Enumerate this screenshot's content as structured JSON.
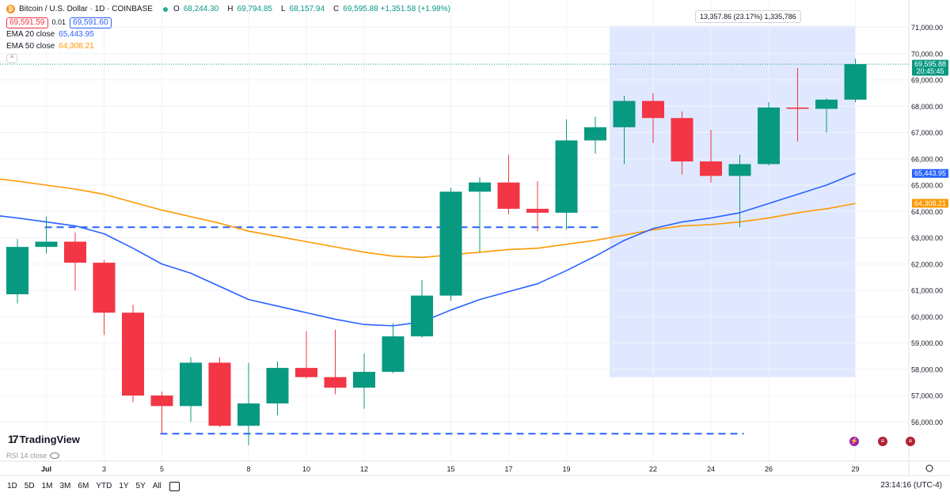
{
  "header": {
    "title": "Bitcoin / U.S. Dollar · 1D · COINBASE",
    "ohlc": [
      {
        "k": "O",
        "v": "68,244.30"
      },
      {
        "k": "H",
        "v": "69,794.85"
      },
      {
        "k": "L",
        "v": "68,157.94"
      },
      {
        "k": "C",
        "v": "69,595.88 +1,351.58 (+1.98%)"
      }
    ],
    "sell_price": "69,591.59",
    "spread": "0.01",
    "buy_price": "69,591.60",
    "ema20_label": "EMA 20 close",
    "ema20_value": "65,443.95",
    "ema50_label": "EMA 50 close",
    "ema50_value": "64,308.21",
    "collapse_symbol": "^"
  },
  "measure_label": "13,357.86 (23.17%) 1,335,786",
  "logo": "TradingView",
  "rsi_label": "RSI 14 close",
  "timeframes": [
    "1D",
    "5D",
    "1M",
    "3M",
    "6M",
    "YTD",
    "1Y",
    "5Y",
    "All"
  ],
  "clock": "23:14:16 (UTC-4)",
  "colors": {
    "up": "#089981",
    "down": "#f23645",
    "ema20": "#2962ff",
    "ema50": "#ff9800",
    "measure": "#dbe4ff"
  },
  "chart_data": {
    "type": "candlestick",
    "y_ticks": [
      56000,
      57000,
      58000,
      59000,
      60000,
      61000,
      62000,
      63000,
      64000,
      65000,
      66000,
      67000,
      68000,
      69000,
      70000,
      71000
    ],
    "y_tick_labels": [
      "56,000.00",
      "57,000.00",
      "58,000.00",
      "59,000.00",
      "60,000.00",
      "61,000.00",
      "62,000.00",
      "63,000.00",
      "64,000.00",
      "65,000.00",
      "66,000.00",
      "67,000.00",
      "68,000.00",
      "69,000.00",
      "70,000.00",
      "71,000.00"
    ],
    "x_ticks": [
      {
        "index": 1,
        "label": "Jul"
      },
      {
        "index": 3,
        "label": "3"
      },
      {
        "index": 5,
        "label": "5"
      },
      {
        "index": 8,
        "label": "8"
      },
      {
        "index": 10,
        "label": "10"
      },
      {
        "index": 12,
        "label": "12"
      },
      {
        "index": 15,
        "label": "15"
      },
      {
        "index": 17,
        "label": "17"
      },
      {
        "index": 19,
        "label": "19"
      },
      {
        "index": 22,
        "label": "22"
      },
      {
        "index": 24,
        "label": "24"
      },
      {
        "index": 26,
        "label": "26"
      },
      {
        "index": 29,
        "label": "29"
      }
    ],
    "candles": [
      {
        "o": 60850,
        "h": 62950,
        "l": 60500,
        "c": 62650
      },
      {
        "o": 62650,
        "h": 63800,
        "l": 62400,
        "c": 62850
      },
      {
        "o": 62850,
        "h": 63200,
        "l": 61000,
        "c": 62050
      },
      {
        "o": 62050,
        "h": 62150,
        "l": 59300,
        "c": 60150
      },
      {
        "o": 60150,
        "h": 60450,
        "l": 56750,
        "c": 57000
      },
      {
        "o": 57000,
        "h": 57150,
        "l": 55550,
        "c": 56600
      },
      {
        "o": 56600,
        "h": 58450,
        "l": 56000,
        "c": 58250
      },
      {
        "o": 58250,
        "h": 58450,
        "l": 55800,
        "c": 55850
      },
      {
        "o": 55850,
        "h": 58250,
        "l": 55100,
        "c": 56700
      },
      {
        "o": 56700,
        "h": 58300,
        "l": 56250,
        "c": 58050
      },
      {
        "o": 58050,
        "h": 59450,
        "l": 57650,
        "c": 57700
      },
      {
        "o": 57700,
        "h": 59500,
        "l": 57050,
        "c": 57300
      },
      {
        "o": 57300,
        "h": 58600,
        "l": 56500,
        "c": 57900
      },
      {
        "o": 57900,
        "h": 59750,
        "l": 57850,
        "c": 59250
      },
      {
        "o": 59250,
        "h": 61400,
        "l": 59200,
        "c": 60800
      },
      {
        "o": 60800,
        "h": 64900,
        "l": 60600,
        "c": 64750
      },
      {
        "o": 64750,
        "h": 65300,
        "l": 62450,
        "c": 65100
      },
      {
        "o": 65100,
        "h": 66150,
        "l": 63900,
        "c": 64100
      },
      {
        "o": 64100,
        "h": 65150,
        "l": 63250,
        "c": 63950
      },
      {
        "o": 63950,
        "h": 67500,
        "l": 63300,
        "c": 66700
      },
      {
        "o": 66700,
        "h": 67600,
        "l": 66200,
        "c": 67200
      },
      {
        "o": 67200,
        "h": 68400,
        "l": 65800,
        "c": 68200
      },
      {
        "o": 68200,
        "h": 68500,
        "l": 66600,
        "c": 67550
      },
      {
        "o": 67550,
        "h": 67800,
        "l": 65400,
        "c": 65900
      },
      {
        "o": 65900,
        "h": 67100,
        "l": 65100,
        "c": 65350
      },
      {
        "o": 65350,
        "h": 66150,
        "l": 63400,
        "c": 65800
      },
      {
        "o": 65800,
        "h": 68150,
        "l": 65750,
        "c": 67950
      },
      {
        "o": 67950,
        "h": 69450,
        "l": 66650,
        "c": 67900
      },
      {
        "o": 67900,
        "h": 68300,
        "l": 67000,
        "c": 68250
      },
      {
        "o": 68250,
        "h": 69800,
        "l": 68150,
        "c": 69600
      }
    ],
    "ema20": [
      63750,
      63600,
      63450,
      63150,
      62600,
      62000,
      61650,
      61150,
      60650,
      60400,
      60150,
      59900,
      59700,
      59650,
      59800,
      60250,
      60650,
      60950,
      61250,
      61750,
      62300,
      62900,
      63350,
      63600,
      63750,
      63950,
      64300,
      64650,
      65000,
      65450
    ],
    "ema50": [
      65150,
      65000,
      64850,
      64650,
      64350,
      64050,
      63800,
      63550,
      63250,
      63050,
      62850,
      62650,
      62450,
      62300,
      62250,
      62350,
      62450,
      62550,
      62600,
      62750,
      62900,
      63100,
      63300,
      63450,
      63500,
      63600,
      63750,
      63950,
      64100,
      64300
    ],
    "support_line_1": {
      "price": 63400,
      "from_index": 1,
      "to_index": 20
    },
    "support_line_2": {
      "price": 55550,
      "from_index": 5,
      "to_index": 25
    },
    "measure_range": {
      "from_index": 21,
      "to_index": 29,
      "low": 57700,
      "high": 71050
    },
    "last_price": {
      "value": "69,595.88",
      "countdown": "20:45:45",
      "price": 69595.88
    },
    "ema20_tag": {
      "value": "65,443.95",
      "price": 65443.95
    },
    "ema50_tag": {
      "value": "64,308.21",
      "price": 64308.21
    }
  }
}
